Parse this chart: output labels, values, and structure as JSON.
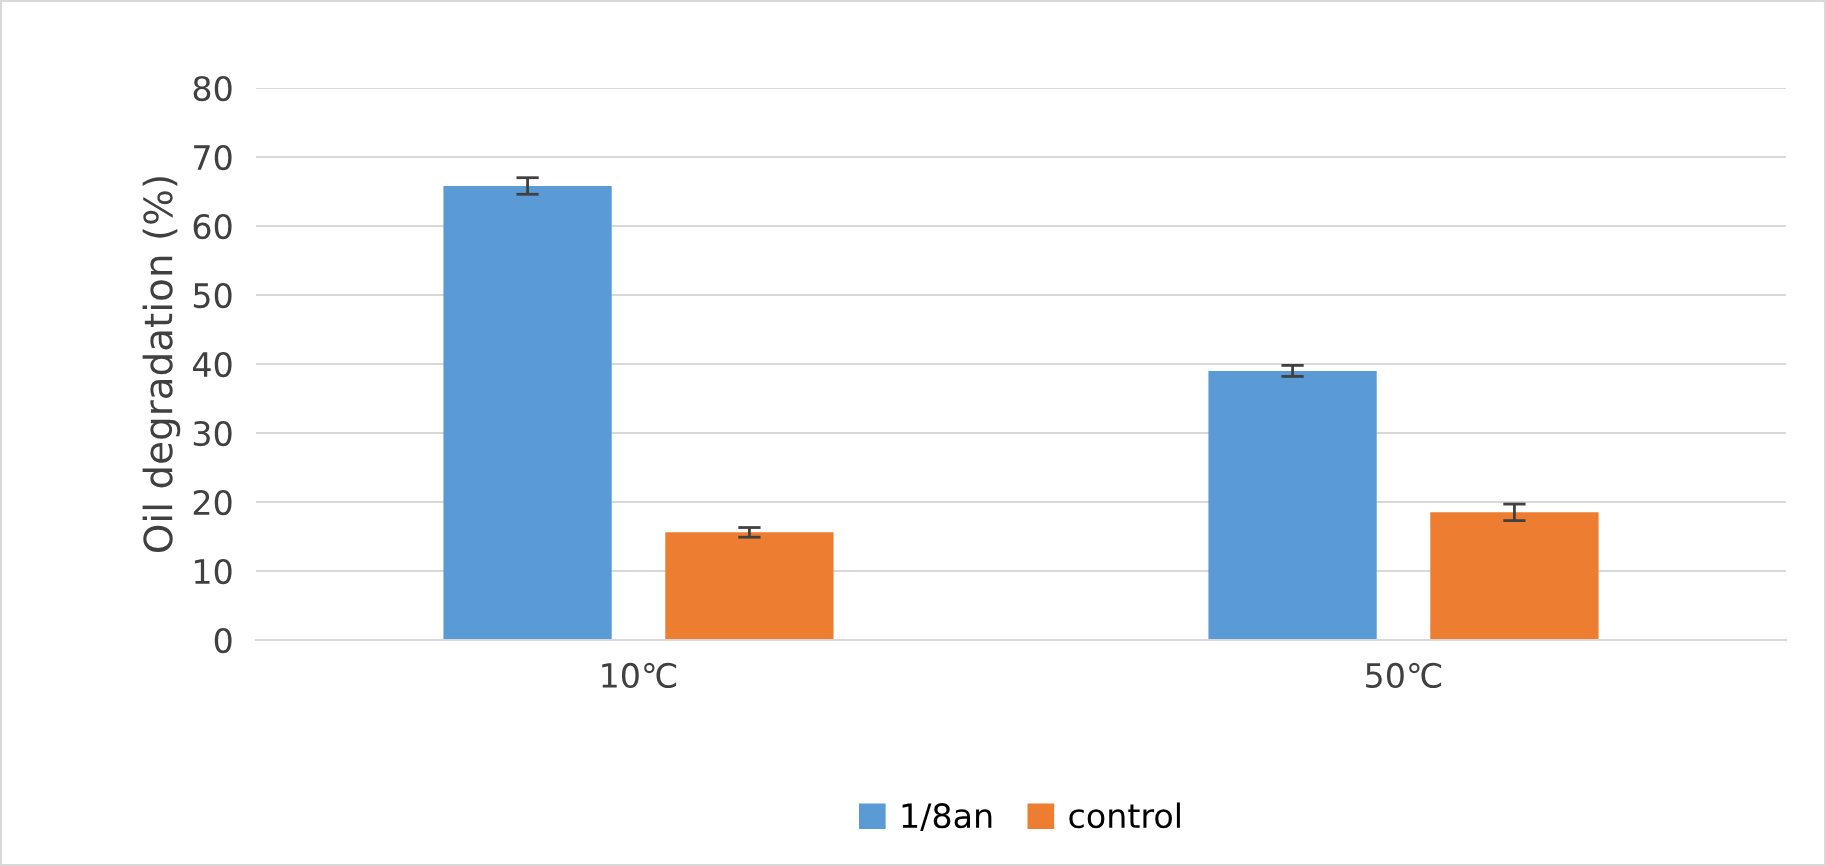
{
  "chart_data": {
    "type": "bar",
    "ylabel": "Oil degradation (%)",
    "categories": [
      "10℃",
      "50℃"
    ],
    "series": [
      {
        "name": "1/8an",
        "color": "#5b9bd5",
        "values": [
          65.8,
          39.0
        ],
        "errors": [
          1.2,
          0.8
        ]
      },
      {
        "name": "control",
        "color": "#ed7d31",
        "values": [
          15.6,
          18.5
        ],
        "errors": [
          0.7,
          1.2
        ]
      }
    ],
    "ylim": [
      0,
      80
    ],
    "yticks": [
      0,
      10,
      20,
      30,
      40,
      50,
      60,
      70,
      80
    ],
    "grid": "y",
    "legend": "bottom"
  }
}
